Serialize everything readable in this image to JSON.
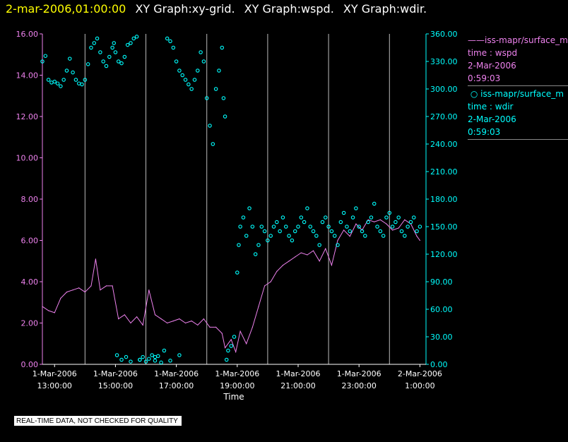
{
  "header": {
    "datetime": "2-mar-2006,01:00:00",
    "titles": [
      "XY Graph:xy-grid.",
      "XY Graph:wspd.",
      "XY Graph:wdir."
    ]
  },
  "legend": {
    "series1": {
      "name": "iss-mapr/surface_m",
      "line2": "time : wspd",
      "line3": "2-Mar-2006",
      "line4": "0:59:03"
    },
    "series2": {
      "name": "iss-mapr/surface_m",
      "line2": "time : wdir",
      "line3": "2-Mar-2006",
      "line4": "0:59:03"
    }
  },
  "disclaimer": "REAL-TIME DATA, NOT CHECKED FOR QUALITY",
  "colors": {
    "wspd": "#ee82ee",
    "wdir": "#00ffff",
    "header_date": "#ffff00",
    "grid": "#bbbbbb"
  },
  "chart_data": {
    "type": "line",
    "title": "XY Graph:xy-grid.  XY Graph:wspd.  XY Graph:wdir.",
    "xlabel": "Time",
    "ylabel_left": "",
    "ylabel_right": "",
    "x_range_hours": [
      12.6,
      25.2
    ],
    "x_ticks": [
      {
        "hour": 13,
        "line1": "1-Mar-2006",
        "line2": "13:00:00"
      },
      {
        "hour": 15,
        "line1": "1-Mar-2006",
        "line2": "15:00:00"
      },
      {
        "hour": 17,
        "line1": "1-Mar-2006",
        "line2": "17:00:00"
      },
      {
        "hour": 19,
        "line1": "1-Mar-2006",
        "line2": "19:00:00"
      },
      {
        "hour": 21,
        "line1": "1-Mar-2006",
        "line2": "21:00:00"
      },
      {
        "hour": 23,
        "line1": "1-Mar-2006",
        "line2": "23:00:00"
      },
      {
        "hour": 25,
        "line1": "2-Mar-2006",
        "line2": "1:00:00"
      }
    ],
    "grid_vertical_hours": [
      14,
      16,
      18,
      20,
      22,
      24
    ],
    "y_left": {
      "min": 0,
      "max": 16,
      "ticks": [
        "0.00",
        "2.00",
        "4.00",
        "6.00",
        "8.00",
        "10.00",
        "12.00",
        "14.00",
        "16.00"
      ]
    },
    "y_right": {
      "min": 0,
      "max": 360,
      "ticks": [
        "0.00",
        "30.00",
        "60.00",
        "90.00",
        "120.00",
        "150.00",
        "180.00",
        "210.00",
        "240.00",
        "270.00",
        "300.00",
        "330.00",
        "360.00"
      ]
    },
    "series": [
      {
        "name": "wspd",
        "style": "line",
        "axis": "left",
        "x": [
          12.6,
          12.8,
          13.0,
          13.2,
          13.4,
          13.6,
          13.8,
          14.0,
          14.2,
          14.35,
          14.5,
          14.7,
          14.9,
          15.1,
          15.3,
          15.5,
          15.7,
          15.9,
          16.1,
          16.3,
          16.5,
          16.7,
          16.9,
          17.1,
          17.3,
          17.5,
          17.7,
          17.9,
          18.1,
          18.3,
          18.5,
          18.6,
          18.8,
          18.95,
          19.1,
          19.3,
          19.5,
          19.7,
          19.9,
          20.1,
          20.3,
          20.5,
          20.7,
          20.9,
          21.1,
          21.3,
          21.5,
          21.7,
          21.9,
          22.1,
          22.3,
          22.5,
          22.7,
          22.9,
          23.1,
          23.3,
          23.5,
          23.7,
          23.9,
          24.1,
          24.3,
          24.5,
          24.7,
          24.9,
          25.0
        ],
        "y": [
          2.8,
          2.6,
          2.5,
          3.2,
          3.5,
          3.6,
          3.7,
          3.5,
          3.8,
          5.1,
          3.6,
          3.8,
          3.8,
          2.2,
          2.4,
          2.0,
          2.3,
          1.9,
          3.6,
          2.4,
          2.2,
          2.0,
          2.1,
          2.2,
          2.0,
          2.1,
          1.9,
          2.2,
          1.8,
          1.8,
          1.5,
          0.8,
          1.2,
          0.6,
          1.6,
          1.0,
          1.8,
          2.8,
          3.8,
          4.0,
          4.5,
          4.8,
          5.0,
          5.2,
          5.4,
          5.3,
          5.5,
          5.0,
          5.6,
          4.8,
          6.0,
          6.5,
          6.2,
          6.8,
          6.5,
          7.0,
          6.9,
          7.0,
          6.8,
          6.5,
          6.6,
          7.0,
          6.8,
          6.2,
          6.0
        ]
      },
      {
        "name": "wdir",
        "style": "markers",
        "axis": "right",
        "x": [
          12.6,
          12.7,
          12.8,
          12.9,
          13.0,
          13.1,
          13.2,
          13.3,
          13.4,
          13.5,
          13.6,
          13.7,
          13.8,
          13.9,
          14.0,
          14.1,
          14.2,
          14.3,
          14.4,
          14.5,
          14.6,
          14.7,
          14.8,
          14.9,
          14.95,
          15.0,
          15.1,
          15.2,
          15.3,
          15.4,
          15.5,
          15.6,
          15.7,
          15.8,
          15.9,
          16.0,
          16.1,
          16.2,
          16.3,
          16.4,
          16.5,
          16.6,
          16.7,
          16.8,
          16.9,
          17.0,
          17.1,
          17.2,
          17.3,
          17.4,
          17.5,
          17.6,
          17.7,
          17.8,
          17.9,
          18.0,
          18.1,
          18.2,
          18.3,
          18.4,
          18.5,
          18.55,
          18.6,
          18.65,
          18.7,
          18.8,
          18.9,
          19.0,
          19.05,
          19.1,
          19.2,
          19.3,
          19.4,
          19.5,
          19.6,
          19.7,
          19.8,
          19.9,
          20.0,
          20.1,
          20.2,
          20.3,
          20.4,
          20.5,
          20.6,
          20.7,
          20.8,
          20.9,
          21.0,
          21.1,
          21.2,
          21.3,
          21.4,
          21.5,
          21.6,
          21.7,
          21.8,
          21.9,
          22.0,
          22.1,
          22.2,
          22.3,
          22.4,
          22.5,
          22.6,
          22.7,
          22.8,
          22.9,
          23.0,
          23.1,
          23.2,
          23.3,
          23.4,
          23.5,
          23.6,
          23.7,
          23.8,
          23.9,
          24.0,
          24.1,
          24.2,
          24.3,
          24.4,
          24.5,
          24.6,
          24.7,
          24.8,
          24.9,
          25.0,
          15.05,
          15.2,
          15.35,
          15.5,
          15.8,
          16.3,
          16.8,
          17.1
        ],
        "y": [
          330,
          336,
          310,
          307,
          308,
          306,
          303,
          310,
          320,
          333,
          318,
          310,
          306,
          305,
          310,
          327,
          345,
          350,
          355,
          340,
          330,
          325,
          335,
          345,
          350,
          340,
          330,
          328,
          335,
          348,
          350,
          355,
          357,
          5,
          8,
          3,
          6,
          10,
          4,
          9,
          2,
          15,
          355,
          352,
          345,
          330,
          320,
          315,
          310,
          305,
          300,
          310,
          320,
          340,
          330,
          290,
          260,
          240,
          300,
          320,
          345,
          290,
          270,
          5,
          15,
          20,
          30,
          100,
          130,
          150,
          160,
          140,
          170,
          150,
          120,
          130,
          150,
          145,
          135,
          140,
          150,
          155,
          145,
          160,
          150,
          140,
          135,
          145,
          150,
          160,
          155,
          170,
          150,
          145,
          140,
          130,
          155,
          160,
          150,
          145,
          140,
          130,
          155,
          165,
          150,
          145,
          160,
          170,
          150,
          145,
          140,
          155,
          160,
          175,
          150,
          145,
          140,
          160,
          165,
          150,
          155,
          160,
          145,
          140,
          150,
          155,
          160,
          145,
          150,
          10,
          5,
          8,
          3,
          5,
          8,
          4,
          10
        ]
      }
    ]
  }
}
